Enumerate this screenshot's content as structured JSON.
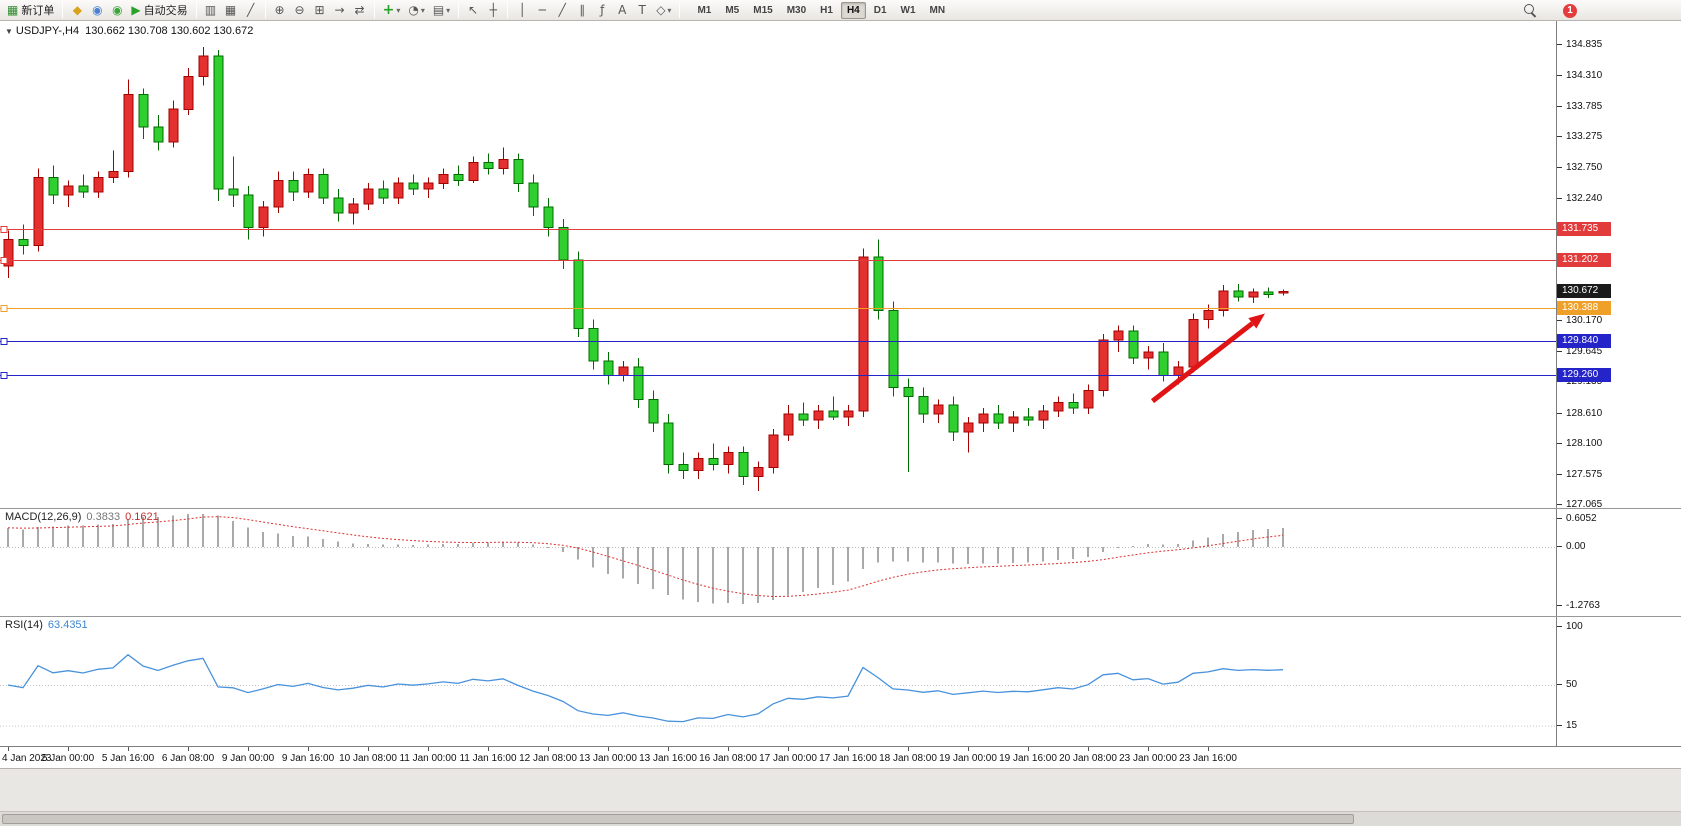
{
  "icons": {
    "collapse": "▼",
    "dropdown": "▾"
  },
  "toolbar": {
    "items": [
      {
        "name": "new-order-button",
        "glyph": "▦",
        "glyph_color": "#2e8b2e",
        "label": "新订单"
      },
      {
        "type": "sep"
      },
      {
        "name": "metaquotes-button",
        "glyph": "◆",
        "glyph_color": "#d9a21b"
      },
      {
        "name": "market-button",
        "glyph": "◉",
        "glyph_color": "#4a7fd4"
      },
      {
        "name": "signals-button",
        "glyph": "◉",
        "glyph_color": "#3aa53a"
      },
      {
        "name": "autotrading-button",
        "glyph": "▶",
        "glyph_color": "#2aa12a",
        "label": "自动交易"
      },
      {
        "type": "sep"
      },
      {
        "name": "bar-chart-mode-button",
        "glyph": "▥"
      },
      {
        "name": "candlestick-mode-button",
        "glyph": "▦"
      },
      {
        "name": "line-chart-mode-button",
        "glyph": "╱"
      },
      {
        "type": "sep"
      },
      {
        "name": "zoom-in-button",
        "glyph": "⊕"
      },
      {
        "name": "zoom-out-button",
        "glyph": "⊖"
      },
      {
        "name": "tile-windows-button",
        "glyph": "⊞"
      },
      {
        "name": "auto-scroll-button",
        "glyph": "→"
      },
      {
        "name": "chart-shift-button",
        "glyph": "⇄"
      },
      {
        "type": "sep"
      },
      {
        "name": "indicators-button",
        "glyph": "+",
        "glyph_color": "#2aa12a",
        "dropdown": true
      },
      {
        "name": "periods-button",
        "glyph": "◔",
        "dropdown": true
      },
      {
        "name": "templates-button",
        "glyph": "▤",
        "dropdown": true
      },
      {
        "type": "sep"
      },
      {
        "name": "cursor-button",
        "glyph": "↖"
      },
      {
        "name": "crosshair-button",
        "glyph": "┼"
      },
      {
        "type": "sep"
      },
      {
        "name": "vertical-line-button",
        "glyph": "│"
      },
      {
        "name": "horizontal-line-button",
        "glyph": "─"
      },
      {
        "name": "trendline-button",
        "glyph": "╱"
      },
      {
        "name": "channel-button",
        "glyph": "∥"
      },
      {
        "name": "fibonacci-button",
        "glyph": "ƒ"
      },
      {
        "name": "text-button",
        "glyph": "A"
      },
      {
        "name": "label-button",
        "glyph": "T"
      },
      {
        "name": "shapes-button",
        "glyph": "◇",
        "dropdown": true
      },
      {
        "type": "sep"
      }
    ],
    "timeframes": [
      {
        "label": "M1"
      },
      {
        "label": "M5"
      },
      {
        "label": "M15"
      },
      {
        "label": "M30"
      },
      {
        "label": "H1"
      },
      {
        "label": "H4",
        "active": true
      },
      {
        "label": "D1"
      },
      {
        "label": "W1"
      },
      {
        "label": "MN"
      }
    ],
    "notification_badge": "1"
  },
  "chart_data": {
    "type": "candlestick",
    "title": "USDJPY-,H4",
    "ohlc_text": "130.662 130.708 130.602 130.672",
    "price_axis": {
      "max": 134.835,
      "min": 127.065,
      "ticks": [
        "134.835",
        "134.310",
        "133.785",
        "133.275",
        "132.750",
        "132.240",
        "130.170",
        "129.645",
        "129.135",
        "128.610",
        "128.100",
        "127.575",
        "127.065"
      ]
    },
    "hlines": [
      {
        "price": 131.735,
        "label": "131.735",
        "color": "#e23b3b"
      },
      {
        "price": 131.202,
        "label": "131.202",
        "color": "#e23b3b"
      },
      {
        "price": 130.388,
        "label": "130.388",
        "color": "#efa029"
      },
      {
        "price": 129.84,
        "label": "129.840",
        "color": "#2424c8"
      },
      {
        "price": 129.26,
        "label": "129.260",
        "color": "#2424c8"
      }
    ],
    "current_price": {
      "value": 130.672,
      "label": "130.672",
      "color": "#1a1a1a"
    },
    "arrow": {
      "color": "#e01414",
      "from": {
        "bar": 76.3,
        "price": 128.82
      },
      "to": {
        "bar": 83.8,
        "price": 130.3
      }
    },
    "label_every_n_bars": 4,
    "time_labels": [
      "4 Jan 2023",
      "5 Jan 00:00",
      "5 Jan 16:00",
      "6 Jan 08:00",
      "9 Jan 00:00",
      "9 Jan 16:00",
      "10 Jan 08:00",
      "11 Jan 00:00",
      "11 Jan 16:00",
      "12 Jan 08:00",
      "13 Jan 00:00",
      "13 Jan 16:00",
      "16 Jan 08:00",
      "17 Jan 00:00",
      "17 Jan 16:00",
      "18 Jan 08:00",
      "19 Jan 00:00",
      "19 Jan 16:00",
      "20 Jan 08:00",
      "23 Jan 00:00",
      "23 Jan 16:00"
    ],
    "macd": {
      "name": "MACD(12,26,9)",
      "main_value": "0.3833",
      "signal_value": "0.1621",
      "axis": [
        "0.6052",
        "0.00",
        "-1.2763"
      ]
    },
    "rsi": {
      "name": "RSI(14)",
      "value": "63.4351",
      "axis": [
        "100",
        "50",
        "15"
      ]
    },
    "candles": [
      [
        131.1,
        131.7,
        130.9,
        131.55
      ],
      [
        131.55,
        131.8,
        131.3,
        131.45
      ],
      [
        131.45,
        132.75,
        131.35,
        132.6
      ],
      [
        132.6,
        132.8,
        132.15,
        132.3
      ],
      [
        132.3,
        132.55,
        132.1,
        132.45
      ],
      [
        132.45,
        132.65,
        132.25,
        132.35
      ],
      [
        132.35,
        132.7,
        132.25,
        132.6
      ],
      [
        132.6,
        133.05,
        132.5,
        132.7
      ],
      [
        132.7,
        134.25,
        132.6,
        134.0
      ],
      [
        134.0,
        134.1,
        133.25,
        133.45
      ],
      [
        133.45,
        133.65,
        133.05,
        133.2
      ],
      [
        133.2,
        133.9,
        133.1,
        133.75
      ],
      [
        133.75,
        134.45,
        133.65,
        134.3
      ],
      [
        134.3,
        134.8,
        134.15,
        134.65
      ],
      [
        134.65,
        134.75,
        132.2,
        132.4
      ],
      [
        132.4,
        132.95,
        132.1,
        132.3
      ],
      [
        132.3,
        132.45,
        131.55,
        131.75
      ],
      [
        131.75,
        132.2,
        131.6,
        132.1
      ],
      [
        132.1,
        132.7,
        132.0,
        132.55
      ],
      [
        132.55,
        132.7,
        132.2,
        132.35
      ],
      [
        132.35,
        132.75,
        132.25,
        132.65
      ],
      [
        132.65,
        132.75,
        132.15,
        132.25
      ],
      [
        132.25,
        132.4,
        131.85,
        132.0
      ],
      [
        132.0,
        132.25,
        131.8,
        132.15
      ],
      [
        132.15,
        132.5,
        132.05,
        132.4
      ],
      [
        132.4,
        132.55,
        132.15,
        132.25
      ],
      [
        132.25,
        132.6,
        132.15,
        132.5
      ],
      [
        132.5,
        132.65,
        132.3,
        132.4
      ],
      [
        132.4,
        132.6,
        132.25,
        132.5
      ],
      [
        132.5,
        132.75,
        132.4,
        132.65
      ],
      [
        132.65,
        132.8,
        132.45,
        132.55
      ],
      [
        132.55,
        132.95,
        132.5,
        132.85
      ],
      [
        132.85,
        133.0,
        132.65,
        132.75
      ],
      [
        132.75,
        133.1,
        132.65,
        132.9
      ],
      [
        132.9,
        133.0,
        132.35,
        132.5
      ],
      [
        132.5,
        132.65,
        131.95,
        132.1
      ],
      [
        132.1,
        132.25,
        131.6,
        131.75
      ],
      [
        131.75,
        131.9,
        131.05,
        131.2
      ],
      [
        131.2,
        131.35,
        129.9,
        130.05
      ],
      [
        130.05,
        130.2,
        129.35,
        129.5
      ],
      [
        129.5,
        129.65,
        129.1,
        129.25
      ],
      [
        129.25,
        129.5,
        129.15,
        129.4
      ],
      [
        129.4,
        129.55,
        128.7,
        128.85
      ],
      [
        128.85,
        129.0,
        128.3,
        128.45
      ],
      [
        128.45,
        128.6,
        127.6,
        127.75
      ],
      [
        127.75,
        127.95,
        127.5,
        127.65
      ],
      [
        127.65,
        127.95,
        127.5,
        127.85
      ],
      [
        127.85,
        128.1,
        127.65,
        127.75
      ],
      [
        127.75,
        128.05,
        127.6,
        127.95
      ],
      [
        127.95,
        128.05,
        127.4,
        127.55
      ],
      [
        127.55,
        127.8,
        127.3,
        127.7
      ],
      [
        127.7,
        128.35,
        127.6,
        128.25
      ],
      [
        128.25,
        128.75,
        128.15,
        128.6
      ],
      [
        128.6,
        128.8,
        128.4,
        128.5
      ],
      [
        128.5,
        128.75,
        128.35,
        128.65
      ],
      [
        128.65,
        128.9,
        128.5,
        128.55
      ],
      [
        128.55,
        128.75,
        128.4,
        128.65
      ],
      [
        128.65,
        131.4,
        128.55,
        131.25
      ],
      [
        131.25,
        131.55,
        130.2,
        130.35
      ],
      [
        130.35,
        130.5,
        128.9,
        129.05
      ],
      [
        129.05,
        129.2,
        127.62,
        128.9
      ],
      [
        128.9,
        129.05,
        128.45,
        128.6
      ],
      [
        128.6,
        128.85,
        128.45,
        128.75
      ],
      [
        128.75,
        128.9,
        128.15,
        128.3
      ],
      [
        128.3,
        128.55,
        127.95,
        128.45
      ],
      [
        128.45,
        128.7,
        128.3,
        128.6
      ],
      [
        128.6,
        128.75,
        128.35,
        128.45
      ],
      [
        128.45,
        128.65,
        128.3,
        128.55
      ],
      [
        128.55,
        128.7,
        128.4,
        128.5
      ],
      [
        128.5,
        128.75,
        128.35,
        128.65
      ],
      [
        128.65,
        128.9,
        128.55,
        128.8
      ],
      [
        128.8,
        128.95,
        128.6,
        128.7
      ],
      [
        128.7,
        129.1,
        128.6,
        129.0
      ],
      [
        129.0,
        129.95,
        128.9,
        129.85
      ],
      [
        129.85,
        130.1,
        129.65,
        130.0
      ],
      [
        130.0,
        130.1,
        129.45,
        129.55
      ],
      [
        129.55,
        129.75,
        129.35,
        129.65
      ],
      [
        129.65,
        129.8,
        129.15,
        129.25
      ],
      [
        129.25,
        129.5,
        129.1,
        129.4
      ],
      [
        129.4,
        130.3,
        129.3,
        130.2
      ],
      [
        130.2,
        130.45,
        130.05,
        130.35
      ],
      [
        130.35,
        130.78,
        130.25,
        130.68
      ],
      [
        130.68,
        130.8,
        130.5,
        130.58
      ],
      [
        130.58,
        130.72,
        130.48,
        130.66
      ],
      [
        130.66,
        130.74,
        130.56,
        130.62
      ],
      [
        130.662,
        130.708,
        130.602,
        130.672
      ]
    ]
  }
}
